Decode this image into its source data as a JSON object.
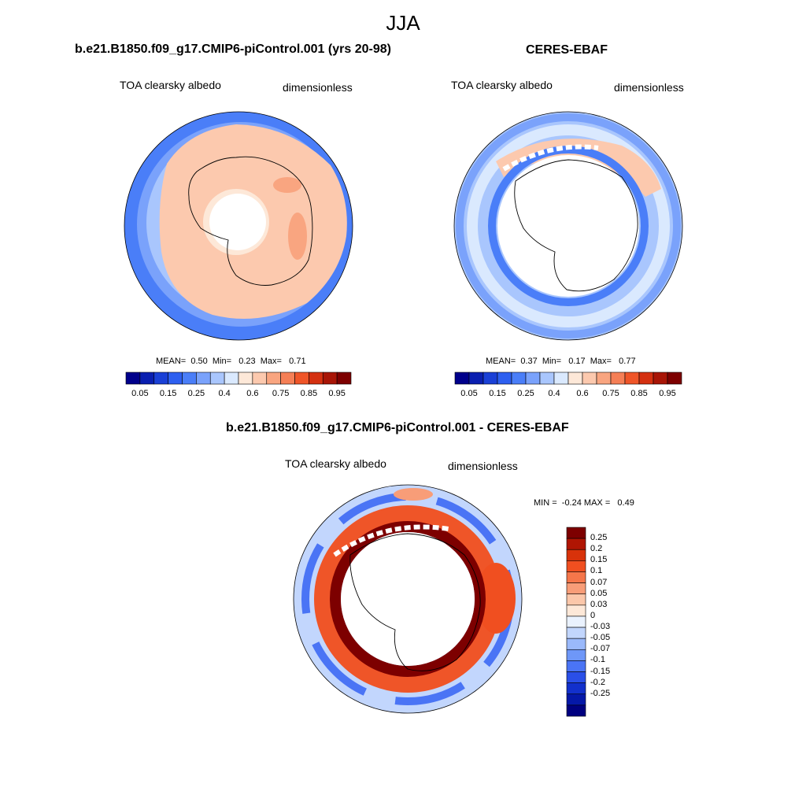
{
  "main_title": "JJA",
  "panels": [
    {
      "title": "b.e21.B1850.f09_g17.CMIP6-piControl.001 (yrs 20-98)",
      "variable": "TOA clearsky albedo",
      "units": "dimensionless",
      "stats": {
        "mean_label": "MEAN=",
        "mean": "0.50",
        "min_label": "Min=",
        "min": "0.23",
        "max_label": "Max=",
        "max": "0.71"
      }
    },
    {
      "title": "CERES-EBAF",
      "variable": "TOA clearsky albedo",
      "units": "dimensionless",
      "stats": {
        "mean_label": "MEAN=",
        "mean": "0.37",
        "min_label": "Min=",
        "min": "0.17",
        "max_label": "Max=",
        "max": "0.77"
      }
    },
    {
      "title": "b.e21.B1850.f09_g17.CMIP6-piControl.001 - CERES-EBAF",
      "variable": "TOA clearsky albedo",
      "units": "dimensionless",
      "stats": {
        "min_label": "MIN =",
        "min": "-0.24",
        "max_label": "MAX =",
        "max": "0.49"
      }
    }
  ],
  "colorbar_abs": {
    "colors": [
      "#00008b",
      "#0a1fb0",
      "#1a40d6",
      "#2d5ff0",
      "#4a7ef8",
      "#7aa2fb",
      "#a9c6fd",
      "#dae9fe",
      "#fde8d8",
      "#fcc9ae",
      "#f9a580",
      "#f57f56",
      "#ef5528",
      "#d43010",
      "#a81506",
      "#7d0000"
    ],
    "ticks": [
      "0.05",
      "0.15",
      "0.25",
      "0.4",
      "0.6",
      "0.75",
      "0.85",
      "0.95"
    ]
  },
  "colorbar_diff": {
    "colors": [
      "#7d0000",
      "#b01503",
      "#d8320a",
      "#f04f20",
      "#f5764a",
      "#f89d78",
      "#fbc7aa",
      "#fde8d8",
      "#eaf2fe",
      "#c2d6fd",
      "#9ab9fb",
      "#6e97f8",
      "#4a74f5",
      "#2a4fe8",
      "#1230cc",
      "#0518a8",
      "#000080"
    ],
    "ticks": [
      "0.25",
      "0.2",
      "0.15",
      "0.1",
      "0.07",
      "0.05",
      "0.03",
      "0",
      "-0.03",
      "-0.05",
      "-0.07",
      "-0.1",
      "-0.15",
      "-0.2",
      "-0.25"
    ]
  }
}
